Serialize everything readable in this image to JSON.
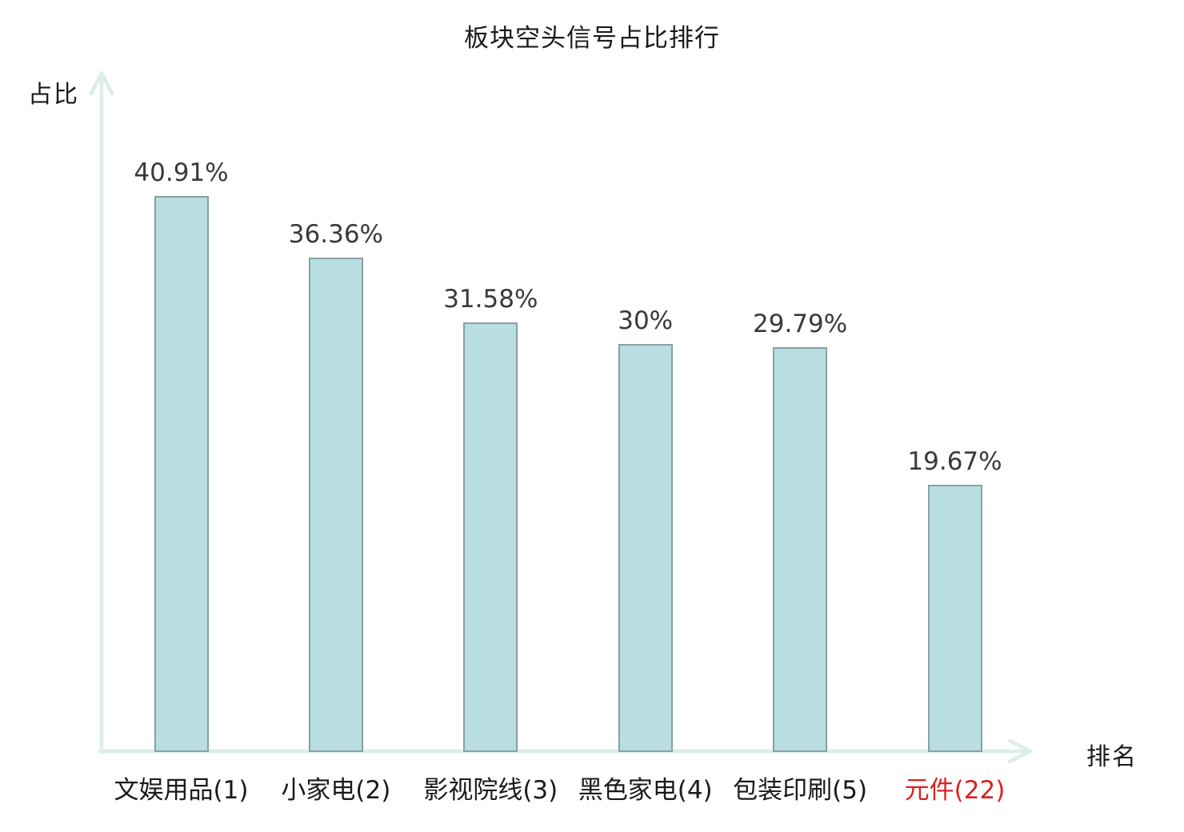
{
  "title": "板块空头信号占比排行",
  "axes": {
    "y_label": "占比",
    "x_label": "排名"
  },
  "chart_data": {
    "type": "bar",
    "title": "板块空头信号占比排行",
    "xlabel": "排名",
    "ylabel": "占比",
    "categories": [
      "文娱用品(1)",
      "小家电(2)",
      "影视院线(3)",
      "黑色家电(4)",
      "包装印刷(5)",
      "元件(22)"
    ],
    "values": [
      40.91,
      36.36,
      31.58,
      30,
      29.79,
      19.67
    ],
    "value_labels": [
      "40.91%",
      "36.36%",
      "31.58%",
      "30%",
      "29.79%",
      "19.67%"
    ],
    "highlight_index": 5,
    "ylim": [
      0,
      50
    ],
    "grid": false,
    "legend_position": "none"
  },
  "colors": {
    "bar_fill": "#b9dee2",
    "bar_border": "#87a1a6",
    "axis": "#dcede9",
    "highlight": "#e01f1f",
    "value_label": "#3a3a3a",
    "text": "#1a1a1a"
  }
}
